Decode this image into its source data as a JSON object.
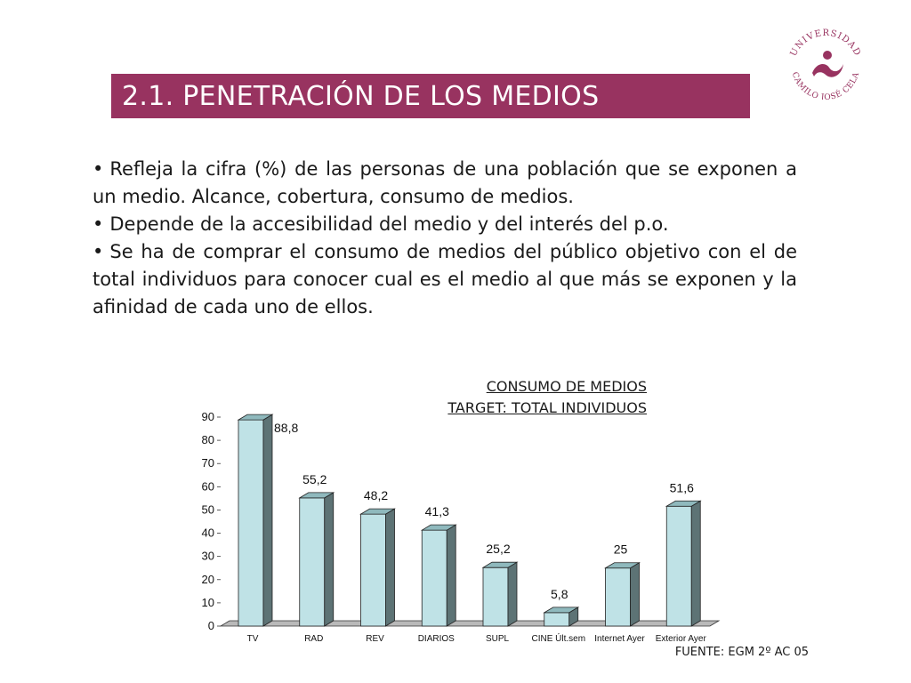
{
  "title": "2.1. PENETRACIÓN DE LOS MEDIOS",
  "logo": {
    "line_top": "UNIVERSIDAD",
    "line_bottom": "CAMILO JOSÉ CELA",
    "color": "#983360"
  },
  "bullets": [
    "Refleja la cifra (%) de las personas de una población que se exponen a un medio. Alcance, cobertura, consumo de medios.",
    "Depende de la accesibilidad del medio y del interés del p.o.",
    "Se ha de comprar el consumo de medios del público objetivo con el de total individuos para conocer cual es el medio al que más se exponen y la afinidad de cada uno de ellos."
  ],
  "chart_heading": {
    "line1": "CONSUMO DE MEDIOS",
    "line2": "TARGET: TOTAL INDIVIDUOS"
  },
  "source": "FUENTE: EGM 2º AC 05",
  "colors": {
    "accent": "#983360",
    "bar_front": "#bfe2e6",
    "bar_side": "#5d7375",
    "bar_top": "#8fb9bd",
    "floor": "#b9b9b9"
  },
  "chart_data": {
    "type": "bar",
    "categories": [
      "TV",
      "RAD",
      "REV",
      "DIARIOS",
      "SUPL",
      "CINE Últ.sem",
      "Internet Ayer",
      "Exterior Ayer"
    ],
    "values": [
      88.8,
      55.2,
      48.2,
      41.3,
      25.2,
      5.8,
      25,
      51.6
    ],
    "value_labels": [
      "88,8",
      "55,2",
      "48,2",
      "41,3",
      "25,2",
      "5,8",
      "25",
      "51,6"
    ],
    "ylim": [
      0,
      90
    ],
    "yticks": [
      0,
      10,
      20,
      30,
      40,
      50,
      60,
      70,
      80,
      90
    ],
    "xlabel": "",
    "ylabel": "",
    "grid": false,
    "style": "3d"
  }
}
